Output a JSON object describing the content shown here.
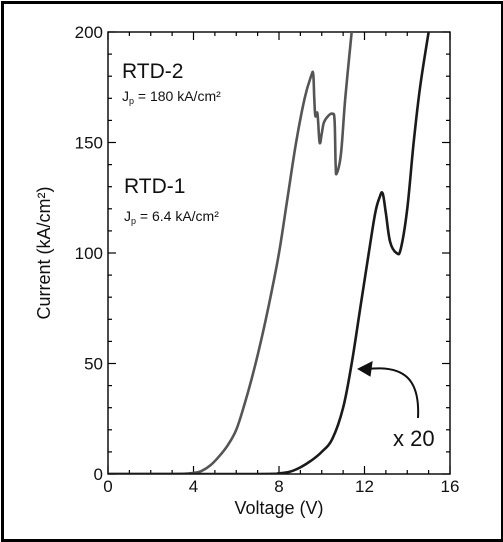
{
  "chart_data": {
    "type": "line",
    "xlabel": "Voltage (V)",
    "ylabel": "Current (kA/cm²)",
    "xlim": [
      0,
      16
    ],
    "ylim": [
      0,
      200
    ],
    "x_ticks": [
      "0",
      "4",
      "8",
      "12",
      "16"
    ],
    "y_ticks": [
      "0",
      "50",
      "100",
      "150",
      "200"
    ],
    "grid": false,
    "series": [
      {
        "name": "RTD-2",
        "color": "#555555",
        "annotation": {
          "jp_prefix": "J",
          "jp_sub": "p",
          "jp_value": "= 180 kA/cm²"
        },
        "x": [
          0,
          3,
          4,
          4.4,
          4.8,
          5.2,
          5.6,
          6.0,
          6.4,
          6.8,
          7.2,
          7.6,
          8.0,
          8.4,
          8.8,
          9.2,
          9.5,
          9.6,
          9.65,
          9.7,
          9.8,
          9.9,
          10.0,
          10.1,
          10.3,
          10.5,
          10.6,
          10.65,
          10.7,
          10.9,
          11.1,
          11.4
        ],
        "y": [
          0,
          0,
          0.5,
          1.5,
          4,
          8,
          13,
          20,
          32,
          46,
          62,
          80,
          100,
          125,
          150,
          170,
          180,
          181,
          170,
          162,
          163,
          150,
          154,
          159,
          162,
          163,
          160,
          140,
          136,
          145,
          170,
          200
        ]
      },
      {
        "name": "RTD-1",
        "color": "#1a1a1a",
        "annotation": {
          "jp_prefix": "J",
          "jp_sub": "p",
          "jp_value": "= 6.4 kA/cm²"
        },
        "x": [
          0,
          7,
          8,
          8.5,
          9.0,
          9.5,
          10.0,
          10.5,
          11.0,
          11.4,
          11.8,
          12.2,
          12.5,
          12.7,
          12.85,
          13.0,
          13.2,
          13.5,
          13.7,
          14.0,
          14.3,
          14.6,
          15.0
        ],
        "y": [
          0,
          0,
          0.3,
          1,
          3,
          6,
          10,
          16,
          30,
          50,
          75,
          100,
          118,
          125,
          127,
          118,
          105,
          100,
          102,
          120,
          150,
          175,
          200
        ]
      }
    ],
    "annotations": [
      {
        "text": "x 20",
        "points_to": "RTD-1",
        "arrow_to": [
          11.7,
          48
        ]
      }
    ]
  }
}
